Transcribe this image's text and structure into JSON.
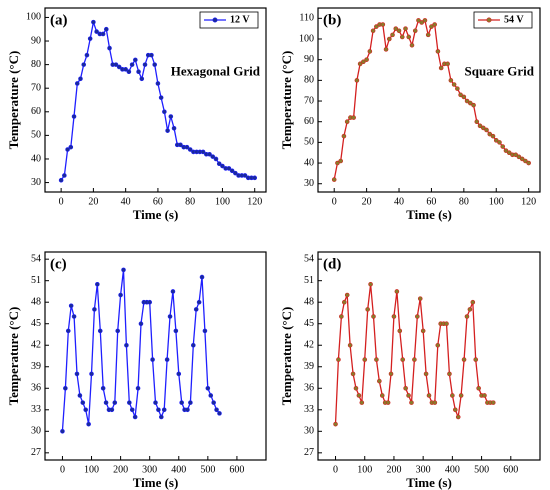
{
  "chart_data": [
    {
      "type": "line",
      "title": "(a)",
      "annotation": "Hexagonal Grid",
      "xlabel": "Time (s)",
      "ylabel": "Temperature (°C)",
      "legend": "upper right",
      "x": [
        0,
        2,
        4,
        6,
        8,
        10,
        12,
        14,
        16,
        18,
        20,
        22,
        24,
        26,
        28,
        30,
        32,
        34,
        36,
        38,
        40,
        42,
        44,
        46,
        48,
        50,
        52,
        54,
        56,
        58,
        60,
        62,
        64,
        66,
        68,
        70,
        72,
        74,
        76,
        78,
        80,
        82,
        84,
        86,
        88,
        90,
        92,
        94,
        96,
        98,
        100,
        102,
        104,
        106,
        108,
        110,
        112,
        114,
        116,
        118,
        120
      ],
      "series": [
        {
          "name": "12 V",
          "color": "#1f1fff",
          "marker_color": "#1a2a9a",
          "values": [
            31,
            33,
            44,
            45,
            58,
            72,
            74,
            80,
            84,
            91,
            98,
            94,
            93,
            93,
            95,
            87,
            80,
            80,
            79,
            78,
            78,
            77,
            80,
            82,
            77,
            74,
            80,
            84,
            84,
            80,
            72,
            66,
            60,
            52,
            58,
            53,
            46,
            46,
            45,
            45,
            44,
            43,
            43,
            43,
            43,
            42,
            42,
            41,
            40,
            38,
            37,
            36,
            36,
            35,
            34,
            33,
            33,
            33,
            32,
            32,
            32
          ]
        }
      ],
      "xlim": [
        -10,
        127
      ],
      "ylim": [
        26,
        104
      ],
      "xticks": [
        0,
        20,
        40,
        60,
        80,
        100,
        120
      ],
      "yticks": [
        30,
        40,
        50,
        60,
        70,
        80,
        90,
        100
      ]
    },
    {
      "type": "line",
      "title": "(b)",
      "annotation": "Square Grid",
      "xlabel": "Time (s)",
      "ylabel": "Temperature (°C)",
      "legend": "upper right",
      "x": [
        0,
        2,
        4,
        6,
        8,
        10,
        12,
        14,
        16,
        18,
        20,
        22,
        24,
        26,
        28,
        30,
        32,
        34,
        36,
        38,
        40,
        42,
        44,
        46,
        48,
        50,
        52,
        54,
        56,
        58,
        60,
        62,
        64,
        66,
        68,
        70,
        72,
        74,
        76,
        78,
        80,
        82,
        84,
        86,
        88,
        90,
        92,
        94,
        96,
        98,
        100,
        102,
        104,
        106,
        108,
        110,
        112,
        114,
        116,
        118,
        120
      ],
      "series": [
        {
          "name": "54 V",
          "color": "#d42020",
          "marker_color": "#8b7a2a",
          "values": [
            32,
            40,
            41,
            53,
            60,
            62,
            62,
            80,
            88,
            89,
            90,
            94,
            104,
            106,
            107,
            107,
            95,
            100,
            102,
            105,
            104,
            101,
            105,
            101,
            97,
            104,
            109,
            108,
            109,
            102,
            106,
            107,
            94,
            86,
            88,
            88,
            80,
            78,
            76,
            73,
            72,
            70,
            69,
            68,
            60,
            58,
            57,
            56,
            54,
            53,
            51,
            50,
            48,
            46,
            45,
            44,
            44,
            43,
            42,
            41,
            40
          ]
        }
      ],
      "xlim": [
        -10,
        127
      ],
      "ylim": [
        26,
        115
      ],
      "xticks": [
        0,
        20,
        40,
        60,
        80,
        100,
        120
      ],
      "yticks": [
        30,
        40,
        50,
        60,
        70,
        80,
        90,
        100,
        110
      ]
    },
    {
      "type": "line",
      "title": "(c)",
      "xlabel": "Time (s)",
      "ylabel": "Temperature (°C)",
      "x": [
        0,
        10,
        20,
        30,
        40,
        50,
        60,
        70,
        80,
        90,
        100,
        110,
        120,
        130,
        140,
        150,
        160,
        170,
        180,
        190,
        200,
        210,
        220,
        230,
        240,
        250,
        260,
        270,
        280,
        290,
        300,
        310,
        320,
        330,
        340,
        350,
        360,
        370,
        380,
        390,
        400,
        410,
        420,
        430,
        440,
        450,
        460,
        470,
        480,
        490,
        500,
        510,
        520,
        530,
        540
      ],
      "series": [
        {
          "color": "#1f1fff",
          "marker_color": "#1a2a9a",
          "values": [
            30,
            36,
            44,
            47.5,
            46,
            38,
            35,
            34,
            33,
            31,
            38,
            47,
            50.5,
            44,
            36,
            34,
            33,
            33,
            34,
            44,
            49,
            52.5,
            42,
            34,
            33,
            32,
            36,
            45,
            48,
            48,
            48,
            40,
            34,
            33,
            32,
            33,
            40,
            46,
            49.5,
            44,
            38,
            34,
            33,
            33,
            34,
            42,
            47,
            48,
            51.5,
            44,
            36,
            35,
            34,
            33,
            32.5
          ]
        }
      ],
      "xlim": [
        -60,
        700
      ],
      "ylim": [
        26,
        55
      ],
      "xticks": [
        0,
        100,
        200,
        300,
        400,
        500,
        600
      ],
      "yticks": [
        27,
        30,
        33,
        36,
        39,
        42,
        45,
        48,
        51,
        54
      ]
    },
    {
      "type": "line",
      "title": "(d)",
      "xlabel": "Time (s)",
      "ylabel": "Temperature (°C)",
      "x": [
        0,
        10,
        20,
        30,
        40,
        50,
        60,
        70,
        80,
        90,
        100,
        110,
        120,
        130,
        140,
        150,
        160,
        170,
        180,
        190,
        200,
        210,
        220,
        230,
        240,
        250,
        260,
        270,
        280,
        290,
        300,
        310,
        320,
        330,
        340,
        350,
        360,
        370,
        380,
        390,
        400,
        410,
        420,
        430,
        440,
        450,
        460,
        470,
        480,
        490,
        500,
        510,
        520,
        530,
        540
      ],
      "series": [
        {
          "color": "#d42020",
          "marker_color": "#8b7a2a",
          "values": [
            31,
            40,
            46,
            48,
            49,
            42,
            38,
            36,
            35,
            34,
            40,
            47,
            50.5,
            46,
            40,
            37,
            35,
            34,
            34,
            38,
            46,
            49.5,
            44,
            40,
            36,
            35,
            34,
            40,
            46,
            48.5,
            44,
            38,
            35,
            34,
            34,
            42,
            45,
            45,
            45,
            38,
            35,
            33,
            32,
            35,
            40,
            46,
            47,
            48,
            40,
            36,
            35,
            35,
            34,
            34,
            34
          ]
        }
      ],
      "xlim": [
        -60,
        700
      ],
      "ylim": [
        26,
        55
      ],
      "xticks": [
        0,
        100,
        200,
        300,
        400,
        500,
        600
      ],
      "yticks": [
        27,
        30,
        33,
        36,
        39,
        42,
        45,
        48,
        51,
        54
      ]
    }
  ]
}
